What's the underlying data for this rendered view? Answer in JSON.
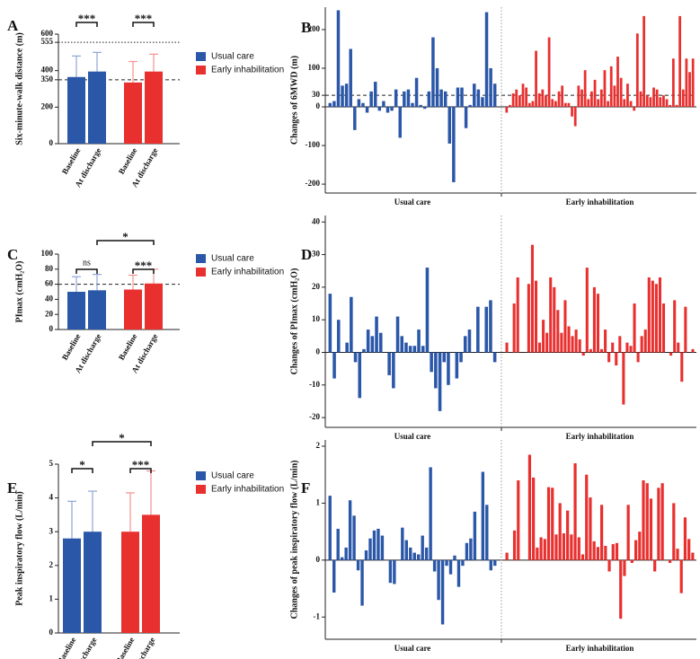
{
  "chart_data": [
    {
      "type": "bar",
      "label": "A",
      "y_label": "Six-minute-walk distance (m)",
      "categories": [
        "Baseline",
        "At discharge"
      ],
      "series": [
        {
          "name": "Usual care",
          "color": "#2b57a8",
          "error_color": "#8fa4d8",
          "values": [
            365,
            395
          ],
          "errors": [
            115,
            105
          ]
        },
        {
          "name": "Early inhabilitation",
          "color": "#e8302f",
          "error_color": "#f29191",
          "values": [
            335,
            395
          ],
          "errors": [
            115,
            95
          ]
        }
      ],
      "ylim": [
        0,
        600
      ],
      "yticks": [
        0,
        200,
        350,
        400,
        555,
        600
      ],
      "hlines": [
        {
          "value": 555,
          "style": "dotted"
        },
        {
          "value": 350,
          "style": "dashed"
        }
      ],
      "annotations": [
        "***",
        "***"
      ]
    },
    {
      "type": "waterfall",
      "label": "B",
      "y_label": "Changes of 6MWD (m)",
      "series": [
        {
          "name": "Usual care",
          "color": "#2b57a8",
          "values": [
            10,
            15,
            250,
            55,
            60,
            150,
            -60,
            20,
            10,
            -15,
            40,
            65,
            -10,
            15,
            -15,
            -10,
            45,
            -80,
            40,
            45,
            10,
            75,
            5,
            -5,
            40,
            180,
            100,
            45,
            40,
            -95,
            -195,
            50,
            50,
            -55,
            5,
            60,
            45,
            25,
            245,
            100,
            60
          ]
        },
        {
          "name": "Early inhabilitation",
          "color": "#e8302f",
          "values": [
            -15,
            5,
            35,
            45,
            30,
            60,
            50,
            10,
            15,
            145,
            35,
            45,
            30,
            180,
            20,
            15,
            40,
            55,
            10,
            10,
            -25,
            -50,
            55,
            45,
            95,
            20,
            40,
            70,
            20,
            45,
            95,
            15,
            105,
            55,
            130,
            75,
            20,
            60,
            15,
            -10,
            190,
            40,
            235,
            30,
            25,
            50,
            45,
            25,
            30,
            20,
            5,
            125,
            5,
            235,
            45,
            125,
            90,
            125
          ]
        }
      ],
      "ylim": [
        -223,
        258
      ],
      "yticks": [
        -200,
        -100,
        0,
        30,
        100,
        200
      ],
      "hlines": [
        {
          "value": 30,
          "style": "dashed"
        }
      ]
    },
    {
      "type": "bar",
      "label": "C",
      "y_label": "PImax (cmH₂O)",
      "categories": [
        "Baseline",
        "At discharge"
      ],
      "series": [
        {
          "name": "Usual care",
          "color": "#2b57a8",
          "error_color": "#8fa4d8",
          "values": [
            50,
            52
          ],
          "errors": [
            20,
            21
          ]
        },
        {
          "name": "Early inhabilitation",
          "color": "#e8302f",
          "error_color": "#f29191",
          "values": [
            53,
            61
          ],
          "errors": [
            19,
            19
          ]
        }
      ],
      "ylim": [
        0,
        100
      ],
      "yticks": [
        0,
        20,
        40,
        60,
        80,
        100
      ],
      "hlines": [
        {
          "value": 60,
          "style": "dashed"
        }
      ],
      "annotations": [
        "ns",
        "***",
        "*"
      ]
    },
    {
      "type": "waterfall",
      "label": "D",
      "y_label": "Changes of PImax (cmH₂O)",
      "series": [
        {
          "name": "Usual care",
          "color": "#2b57a8",
          "values": [
            18,
            -8,
            10,
            0,
            3,
            17,
            -3,
            -14,
            1,
            7,
            5,
            11,
            6,
            0,
            -7,
            -11,
            11,
            5,
            3,
            2,
            2,
            7,
            2,
            26,
            -6,
            -11,
            -18,
            -3,
            -10,
            0,
            -8,
            -3,
            5,
            7,
            0,
            14,
            0,
            14,
            16,
            -3
          ]
        },
        {
          "name": "Early inhabilitation",
          "color": "#e8302f",
          "values": [
            3,
            0,
            15,
            23,
            0,
            0,
            21,
            33,
            22,
            3,
            10,
            6,
            23,
            20,
            13,
            6,
            16,
            8,
            5,
            7,
            4,
            -1,
            26,
            1,
            20,
            18,
            1,
            7,
            -3,
            3,
            -4,
            5,
            -16,
            3,
            2,
            15,
            -3,
            5,
            7,
            23,
            22,
            21,
            23,
            15,
            0,
            -1,
            16,
            3,
            -9,
            14,
            0,
            1
          ]
        }
      ],
      "ylim": [
        -23,
        42
      ],
      "yticks": [
        -20,
        -10,
        0,
        10,
        20,
        30,
        40
      ]
    },
    {
      "type": "bar",
      "label": "E",
      "y_label": "Peak inspiratory flow (L/min)",
      "categories": [
        "Baseline",
        "At discharge"
      ],
      "series": [
        {
          "name": "Usual care",
          "color": "#2b57a8",
          "error_color": "#8fa4d8",
          "values": [
            2.8,
            3.0
          ],
          "errors": [
            1.1,
            1.2
          ]
        },
        {
          "name": "Early inhabilitation",
          "color": "#e8302f",
          "error_color": "#f29191",
          "values": [
            3.0,
            3.5
          ],
          "errors": [
            1.15,
            1.3
          ]
        }
      ],
      "ylim": [
        0,
        5
      ],
      "yticks": [
        0,
        1,
        2,
        3,
        4,
        5
      ],
      "annotations": [
        "*",
        "***",
        "*"
      ]
    },
    {
      "type": "waterfall",
      "label": "F",
      "y_label": "Changes of peak inspiratory flow (L/min)",
      "series": [
        {
          "name": "Usual care",
          "color": "#2b57a8",
          "values": [
            1.13,
            -0.57,
            0.55,
            0.05,
            0.22,
            1.05,
            0.78,
            -0.18,
            -0.8,
            0.17,
            0.38,
            0.52,
            0.55,
            0.43,
            0,
            -0.4,
            -0.42,
            0,
            0.57,
            0.35,
            0.22,
            0.13,
            0.1,
            0.43,
            0.22,
            1.63,
            -0.2,
            -0.7,
            -1.13,
            -0.1,
            -0.25,
            0.08,
            -0.47,
            -0.1,
            0.3,
            0.38,
            0.85,
            0,
            1.55,
            0.97,
            -0.18,
            -0.1
          ]
        },
        {
          "name": "Early inhabilitation",
          "color": "#e8302f",
          "values": [
            0.13,
            0,
            0.52,
            1.4,
            0,
            0,
            1.85,
            1.45,
            0.22,
            0.4,
            0.37,
            1.28,
            1.27,
            0.45,
            1.0,
            0.47,
            0.87,
            0.45,
            1.7,
            0.4,
            0.1,
            1.5,
            1.1,
            0.33,
            0.23,
            0.97,
            0.25,
            -0.2,
            0.28,
            0.3,
            -1.03,
            -0.28,
            0.97,
            -0.05,
            0.35,
            0.5,
            1.4,
            1.35,
            1.08,
            -0.2,
            1.27,
            1.35,
            0,
            -0.05,
            1.0,
            0.2,
            -0.58,
            0.75,
            0.37,
            0.13
          ]
        }
      ],
      "ylim": [
        -1.39,
        2.11
      ],
      "yticks": [
        -1,
        0,
        1,
        2
      ]
    }
  ]
}
